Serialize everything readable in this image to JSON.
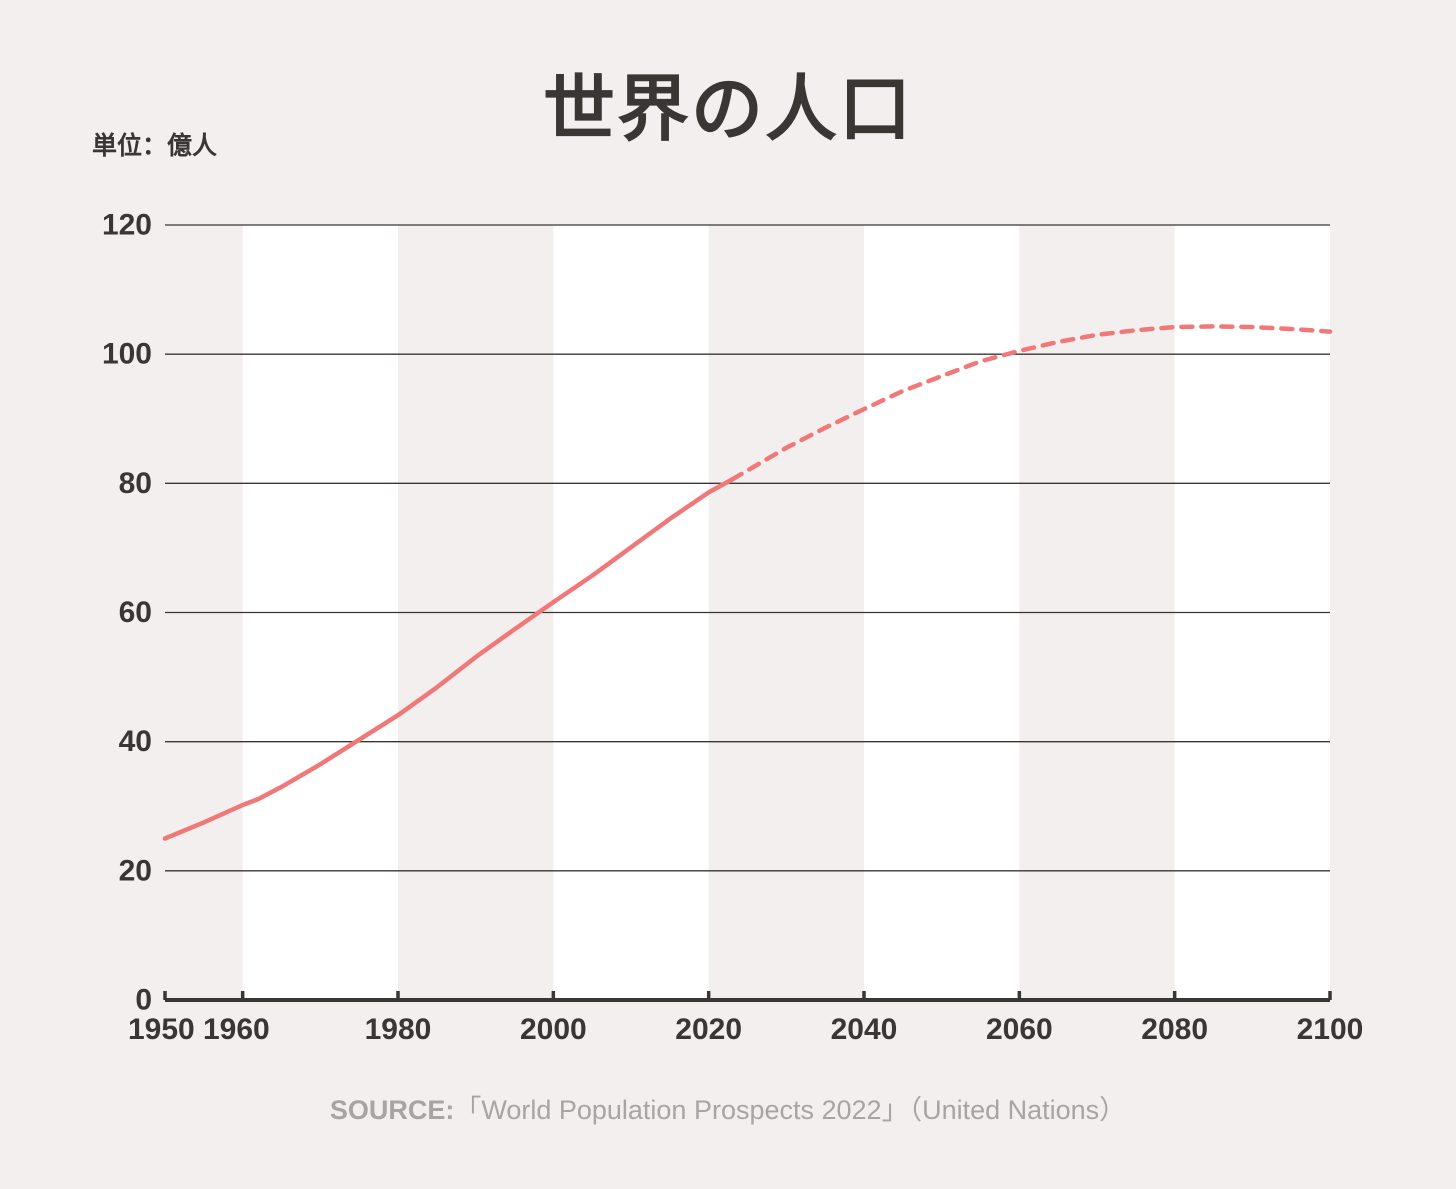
{
  "chart_data": {
    "type": "line",
    "title": "世界の人口",
    "unit_label": "単位：億人",
    "xlabel": "",
    "ylabel": "",
    "xlim": [
      1950,
      2100
    ],
    "ylim": [
      0,
      120
    ],
    "x_ticks": [
      "1950",
      "1960",
      "1980",
      "2000",
      "2020",
      "2040",
      "2060",
      "2080",
      "2100"
    ],
    "y_ticks": [
      "0",
      "20",
      "40",
      "60",
      "80",
      "100",
      "120"
    ],
    "grid": true,
    "colors": {
      "line": "#f07878",
      "band": "#ffffff",
      "background": "#f3efee",
      "gridline": "#3a3634",
      "text": "#3a3634"
    },
    "series": [
      {
        "style": "solid",
        "x": [
          1950,
          1955,
          1960,
          1962,
          1965,
          1970,
          1975,
          1980,
          1985,
          1990,
          1995,
          2000,
          2005,
          2010,
          2015,
          2020,
          2023
        ],
        "y": [
          25,
          27.5,
          30.2,
          31.1,
          33,
          36.5,
          40.3,
          44.1,
          48.4,
          53.1,
          57.4,
          61.6,
          65.7,
          70.1,
          74.5,
          78.6,
          80.6
        ]
      },
      {
        "style": "dashed",
        "x": [
          2023,
          2030,
          2035,
          2040,
          2045,
          2050,
          2055,
          2060,
          2065,
          2070,
          2075,
          2080,
          2085,
          2090,
          2095,
          2100
        ],
        "y": [
          80.6,
          85.5,
          88.6,
          91.5,
          94.3,
          96.6,
          98.9,
          100.5,
          101.9,
          103,
          103.7,
          104.2,
          104.3,
          104.2,
          103.9,
          103.5
        ]
      }
    ]
  },
  "source": {
    "key": "SOURCE:",
    "text": "「World Population Prospects 2022」（United Nations）"
  }
}
